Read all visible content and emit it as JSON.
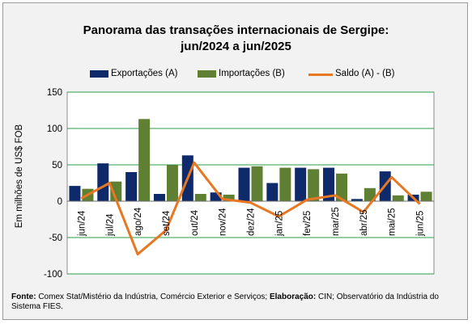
{
  "chart_data": {
    "type": "bar",
    "title": "Panorama das transações internacionais de Sergipe:",
    "subtitle": "jun/2024 a jun/2025",
    "ylabel": "Em milhões de US$ FOB",
    "xlabel": "",
    "ylim": [
      -100,
      150
    ],
    "yticks": [
      150,
      100,
      50,
      0,
      -50,
      -100
    ],
    "categories": [
      "jun/24",
      "jul/24",
      "ago/24",
      "set/24",
      "out/24",
      "nov/24",
      "dez/24",
      "jan/25",
      "fev/25",
      "mar/25",
      "abr/25",
      "mai/25",
      "jun/25"
    ],
    "series": [
      {
        "name": "Exportações (A)",
        "type": "bar",
        "color": "#0f2a6b",
        "values": [
          21,
          52,
          40,
          10,
          63,
          12,
          46,
          25,
          46,
          46,
          3,
          41,
          9
        ]
      },
      {
        "name": "Importações (B)",
        "type": "bar",
        "color": "#5f7f32",
        "values": [
          17,
          27,
          113,
          50,
          10,
          9,
          48,
          46,
          44,
          38,
          18,
          8,
          13
        ]
      },
      {
        "name": "Saldo (A) - (B)",
        "type": "line",
        "color": "#e87722",
        "values": [
          4,
          25,
          -73,
          -40,
          53,
          3,
          -2,
          -21,
          2,
          8,
          -15,
          33,
          -4
        ]
      }
    ],
    "grid": true,
    "legend_position": "top"
  },
  "source": {
    "fonte_label": "Fonte:",
    "fonte_text": " Comex Stat/Mistério da Indústria, Comércio Exterior e Serviços; ",
    "elab_label": "Elaboração:",
    "elab_text": " CIN; Observatório da Indústria do Sistema FIES."
  }
}
